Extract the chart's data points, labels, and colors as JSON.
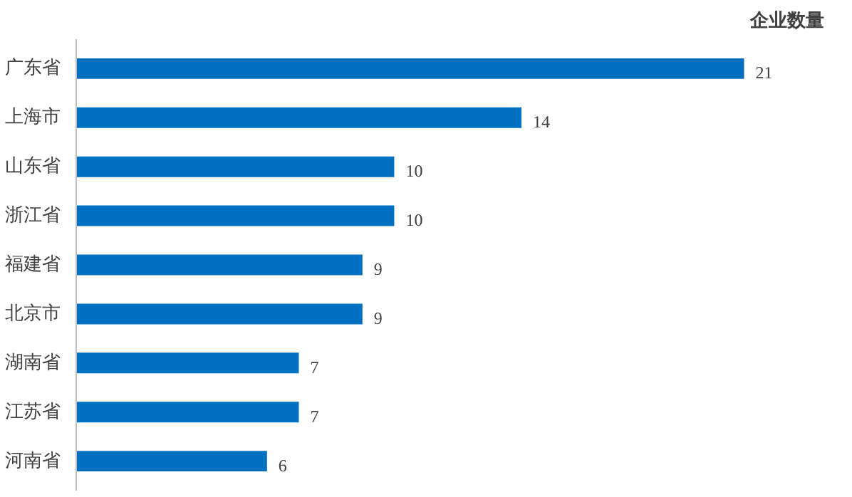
{
  "chart_data": {
    "type": "bar",
    "orientation": "horizontal",
    "title": "企业数量",
    "categories": [
      "广东省",
      "上海市",
      "山东省",
      "浙江省",
      "福建省",
      "北京市",
      "湖南省",
      "江苏省",
      "河南省"
    ],
    "values": [
      21,
      14,
      10,
      10,
      9,
      9,
      7,
      7,
      6
    ],
    "color": "#0070c0",
    "data_labels": true,
    "grid": false
  }
}
